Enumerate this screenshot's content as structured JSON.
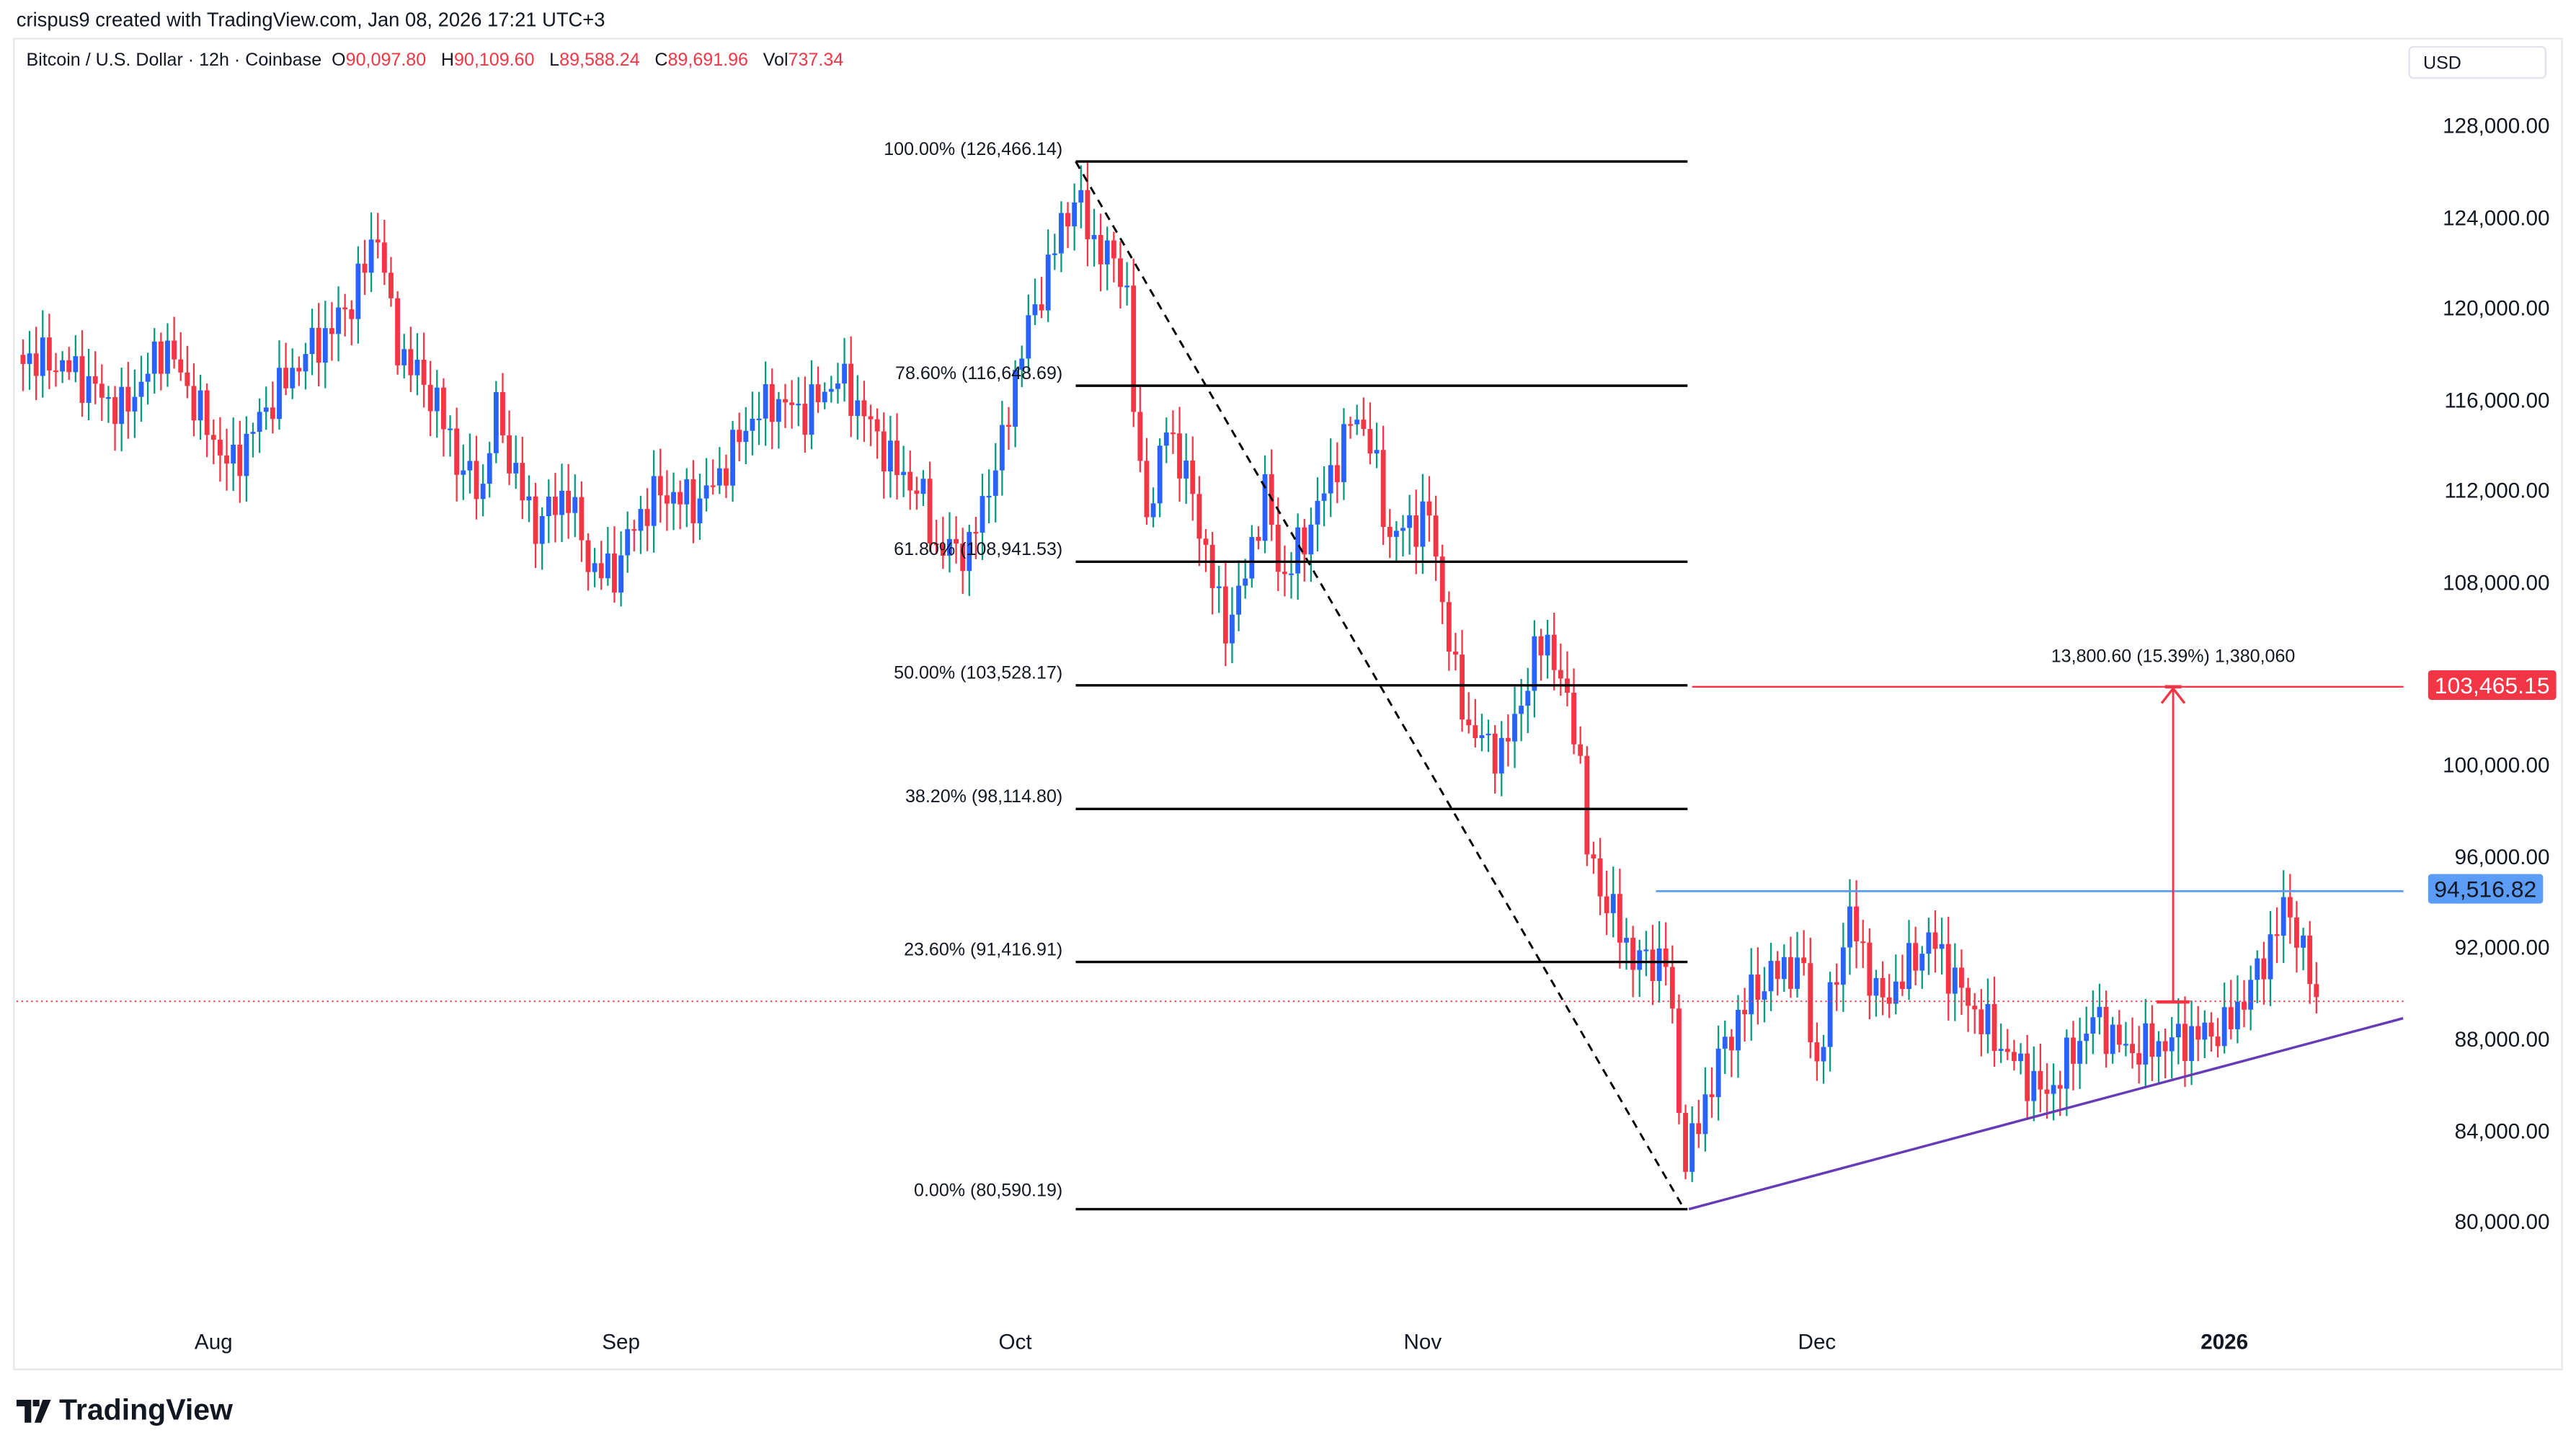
{
  "credit": "crispus9 created with TradingView.com, Jan 08, 2026 17:21 UTC+3",
  "legend": {
    "symbol": "Bitcoin / U.S. Dollar · 12h · Coinbase",
    "o_label": "O",
    "o": "90,097.80",
    "h_label": "H",
    "h": "90,109.60",
    "l_label": "L",
    "l": "89,588.24",
    "c_label": "C",
    "c": "89,691.96",
    "vol_label": "Vol",
    "vol": "737.34"
  },
  "currency": "USD",
  "logo": "TradingView",
  "colors": {
    "up": "#2962ff",
    "up_wick": "#089981",
    "down": "#f23645",
    "target": "#f23645",
    "resistance": "#5b9cf6",
    "trend": "#673ab7"
  },
  "chart_data": {
    "type": "candlestick",
    "title": "Bitcoin / U.S. Dollar · 12h · Coinbase",
    "ylim": [
      72000,
      132000
    ],
    "y_ticks": [
      "128,000.00",
      "124,000.00",
      "120,000.00",
      "116,000.00",
      "112,000.00",
      "108,000.00",
      "100,000.00",
      "96,000.00",
      "92,000.00",
      "88,000.00",
      "84,000.00",
      "80,000.00"
    ],
    "y_tick_values": [
      128000,
      124000,
      120000,
      116000,
      112000,
      108000,
      100000,
      96000,
      92000,
      88000,
      84000,
      80000
    ],
    "x_ticks": [
      {
        "label": "Aug",
        "day": 15
      },
      {
        "label": "Sep",
        "day": 46
      },
      {
        "label": "Oct",
        "day": 76
      },
      {
        "label": "Nov",
        "day": 107
      },
      {
        "label": "Dec",
        "day": 137
      },
      {
        "label": "2026",
        "day": 168
      }
    ],
    "x_start_date": "2025-07-17",
    "close_keypoints_day_price": [
      [
        0,
        118000
      ],
      [
        3.8,
        117500
      ],
      [
        8.1,
        115500
      ],
      [
        11.3,
        118500
      ],
      [
        14.8,
        114500
      ],
      [
        16.3,
        113000
      ],
      [
        18.8,
        115500
      ],
      [
        21.9,
        118000
      ],
      [
        23.8,
        119000
      ],
      [
        25.6,
        120500
      ],
      [
        27.5,
        123500
      ],
      [
        28.8,
        118500
      ],
      [
        31.9,
        116000
      ],
      [
        33.8,
        113000
      ],
      [
        35.6,
        112000
      ],
      [
        36.3,
        116000
      ],
      [
        37.5,
        113500
      ],
      [
        39.4,
        110500
      ],
      [
        41.9,
        112000
      ],
      [
        43.8,
        108500
      ],
      [
        45.6,
        108500
      ],
      [
        46.9,
        110500
      ],
      [
        48.8,
        112000
      ],
      [
        51.9,
        111500
      ],
      [
        53.8,
        113000
      ],
      [
        55.6,
        115000
      ],
      [
        57.5,
        116000
      ],
      [
        60,
        115500
      ],
      [
        62.5,
        117000
      ],
      [
        64.4,
        115500
      ],
      [
        66.9,
        113000
      ],
      [
        68.8,
        112000
      ],
      [
        70,
        109500
      ],
      [
        72.5,
        109500
      ],
      [
        73.8,
        112000
      ],
      [
        75,
        114000
      ],
      [
        76.3,
        118000
      ],
      [
        78.1,
        121000
      ],
      [
        79.4,
        123500
      ],
      [
        80.6,
        125000
      ],
      [
        81.9,
        123000
      ],
      [
        84.4,
        121500
      ],
      [
        85.3,
        113000
      ],
      [
        86.3,
        111000
      ],
      [
        87.5,
        115000
      ],
      [
        89.4,
        112000
      ],
      [
        91.9,
        106000
      ],
      [
        93.1,
        107500
      ],
      [
        95,
        112000
      ],
      [
        96.3,
        108000
      ],
      [
        98.8,
        111000
      ],
      [
        101.9,
        115500
      ],
      [
        103.1,
        114000
      ],
      [
        104.4,
        110000
      ],
      [
        107.5,
        111000
      ],
      [
        109.4,
        104000
      ],
      [
        110.6,
        101500
      ],
      [
        113.1,
        100500
      ],
      [
        116.3,
        106000
      ],
      [
        117.5,
        103500
      ],
      [
        118.8,
        101500
      ],
      [
        119.4,
        96500
      ],
      [
        120.6,
        94500
      ],
      [
        123.1,
        91500
      ],
      [
        125.6,
        91500
      ],
      [
        126.9,
        82500
      ],
      [
        128.1,
        84500
      ],
      [
        129.4,
        87000
      ],
      [
        131.9,
        90000
      ],
      [
        134.4,
        91200
      ],
      [
        136,
        91000
      ],
      [
        136.9,
        86500
      ],
      [
        139.4,
        93500
      ],
      [
        141.9,
        89500
      ],
      [
        145.6,
        92500
      ],
      [
        148.1,
        90000
      ],
      [
        150.6,
        88000
      ],
      [
        154.4,
        85500
      ],
      [
        158.1,
        89000
      ],
      [
        160.6,
        87500
      ],
      [
        164.4,
        88000
      ],
      [
        168.1,
        88500
      ],
      [
        170.6,
        91000
      ],
      [
        172.8,
        94000
      ],
      [
        175.1,
        89692
      ]
    ],
    "fibonacci": {
      "start": {
        "day": 80.6,
        "price": 126466.14
      },
      "end": {
        "day": 126.9,
        "price": 80590.19
      },
      "levels": [
        {
          "label": "100.00% (126,466.14)",
          "price": 126466.14
        },
        {
          "label": "78.60% (116,648.69)",
          "price": 116648.69
        },
        {
          "label": "61.80% (108,941.53)",
          "price": 108941.53
        },
        {
          "label": "50.00% (103,528.17)",
          "price": 103528.17
        },
        {
          "label": "38.20% (98,114.80)",
          "price": 98114.8
        },
        {
          "label": "23.60% (91,416.91)",
          "price": 91416.91
        },
        {
          "label": "0.00% (80,590.19)",
          "price": 80590.19
        }
      ]
    },
    "resistance": {
      "price": 94516.82,
      "label": "94,516.82",
      "from_day": 124.75
    },
    "target": {
      "price": 103465.15,
      "label": "103,465.15",
      "from_day": 127.5
    },
    "measure": {
      "day": 164.1,
      "from_price": 89665,
      "to_price": 103465.15,
      "label": "13,800.60 (15.39%) 1,380,060"
    },
    "trendline": {
      "from": {
        "day": 127.25,
        "price": 80590
      },
      "to": {
        "day": 181.6,
        "price": 88950
      }
    },
    "current_price": 89691.96
  }
}
